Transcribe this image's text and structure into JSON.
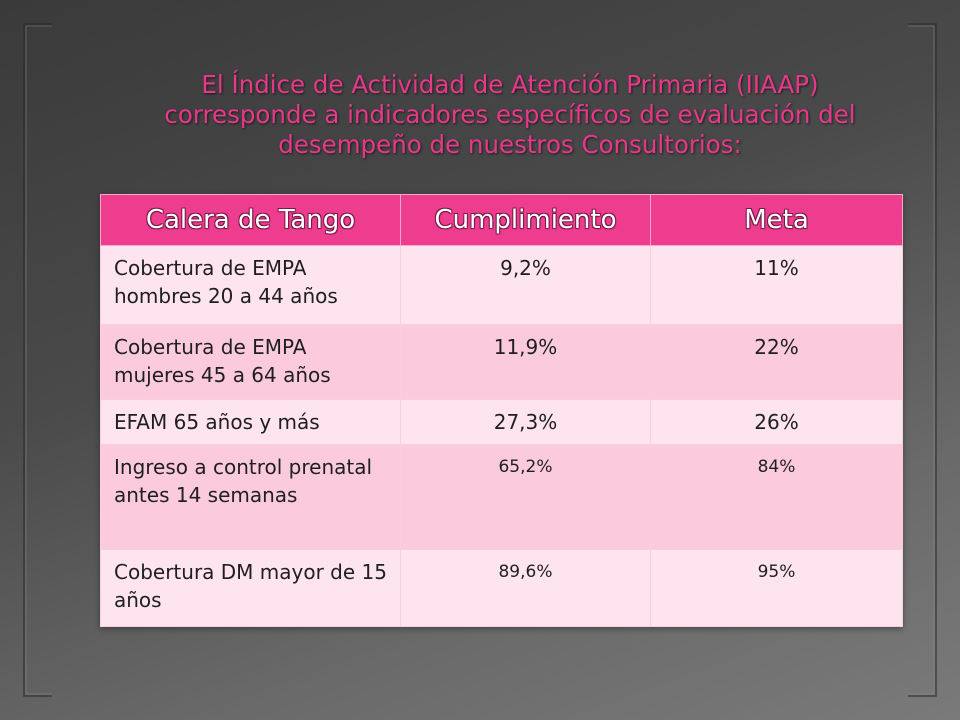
{
  "title_lines": [
    "El Índice de Actividad de Atención Primaria (IIAAP)",
    "corresponde a indicadores específicos de evaluación del",
    "desempeño de nuestros Consultorios:"
  ],
  "table": {
    "headers": [
      "Calera de Tango",
      "Cumplimiento",
      "Meta"
    ],
    "rows": [
      {
        "indicator": "Cobertura de EMPA hombres 20 a 44 años",
        "cumplimiento": "9,2%",
        "meta": "11%"
      },
      {
        "indicator": "Cobertura de EMPA mujeres 45 a 64 años",
        "cumplimiento": "11,9%",
        "meta": "22%"
      },
      {
        "indicator": "EFAM 65 años y más",
        "cumplimiento": "27,3%",
        "meta": "26%"
      },
      {
        "indicator": "Ingreso a control prenatal antes 14 semanas",
        "cumplimiento": "65,2%",
        "meta": "84%"
      },
      {
        "indicator": "Cobertura DM mayor de 15 años",
        "cumplimiento": "89,6%",
        "meta": "95%"
      }
    ]
  },
  "colors": {
    "accent": "#ee3d8f",
    "title": "#e8388a",
    "row_light": "#fde4ee",
    "row_dark": "#fbcbdd",
    "background": "#4a4a4a"
  }
}
